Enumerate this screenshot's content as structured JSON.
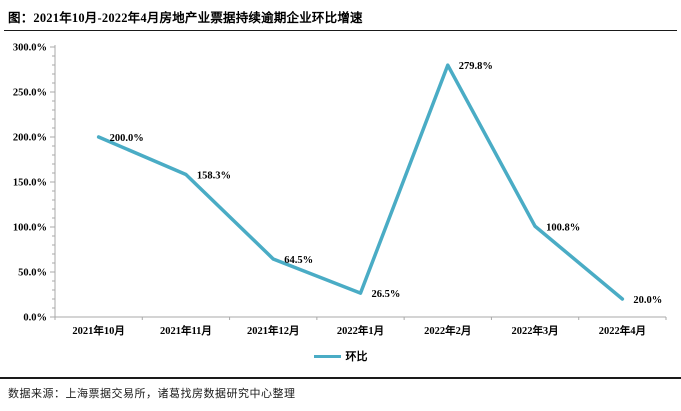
{
  "header": {
    "title": "图：2021年10月-2022年4月房地产业票据持续逾期企业环比增速"
  },
  "footer": {
    "source": "数据来源：上海票据交易所，诸葛找房数据研究中心整理"
  },
  "colors": {
    "line": "#4AACC5",
    "axis": "#A9A9A9",
    "text": "#000000"
  },
  "chart_data": {
    "type": "line",
    "title": "2021年10月-2022年4月房地产业票据持续逾期企业环比增速",
    "categories": [
      "2021年10月",
      "2021年11月",
      "2021年12月",
      "2022年1月",
      "2022年2月",
      "2022年3月",
      "2022年4月"
    ],
    "series": [
      {
        "name": "环比",
        "values": [
          200.0,
          158.3,
          64.5,
          26.5,
          279.8,
          100.8,
          20.0
        ]
      }
    ],
    "data_labels": [
      "200.0%",
      "158.3%",
      "64.5%",
      "26.5%",
      "279.8%",
      "100.8%",
      "20.0%"
    ],
    "xlabel": "",
    "ylabel": "",
    "ylim": [
      0,
      300
    ],
    "y_major_step": 50,
    "y_minor_step": 10,
    "y_tick_labels": [
      "0.0%",
      "50.0%",
      "100.0%",
      "150.0%",
      "200.0%",
      "250.0%",
      "300.0%"
    ],
    "grid": false,
    "legend_position": "bottom"
  }
}
